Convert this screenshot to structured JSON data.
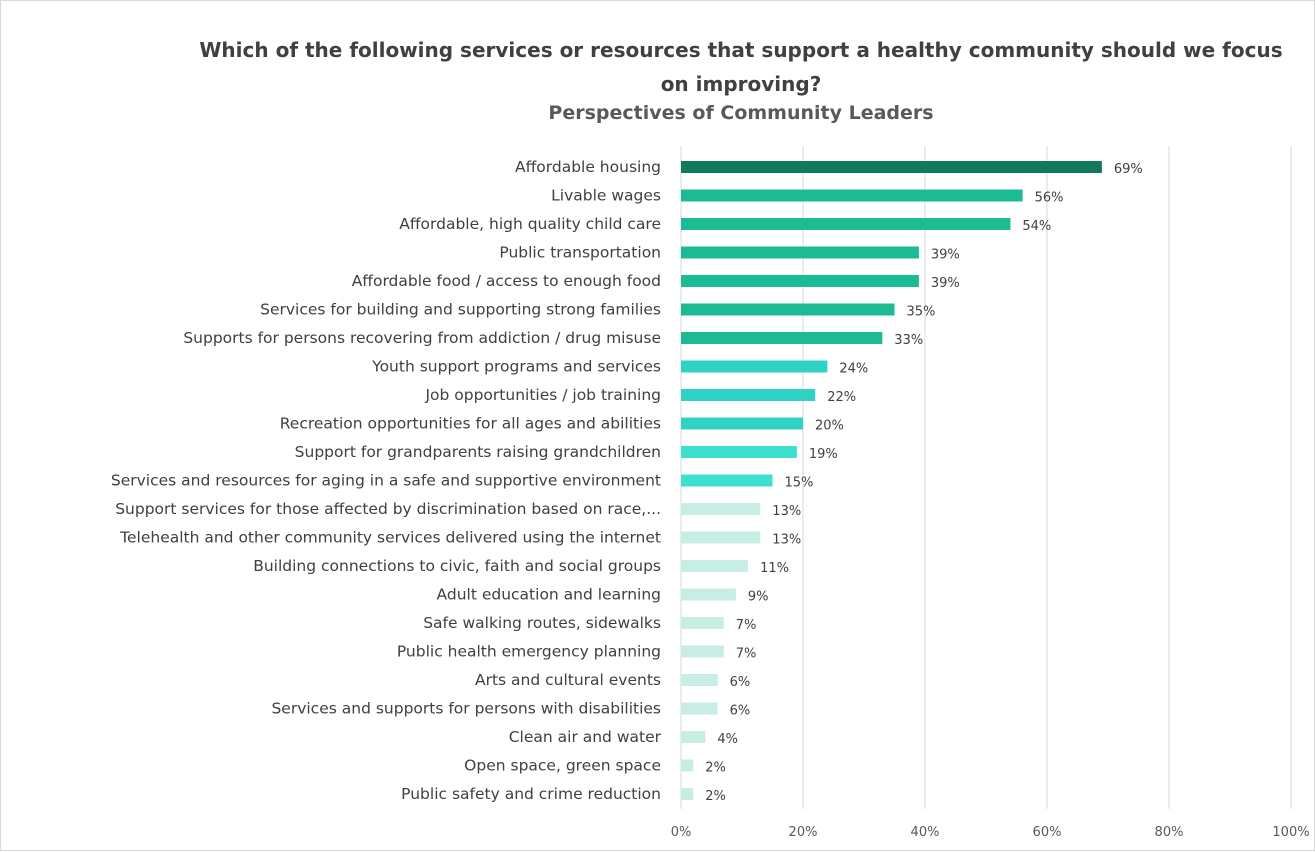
{
  "chart_data": {
    "type": "bar",
    "orientation": "horizontal",
    "title": "Which of the following services or resources that support a healthy community should we focus on improving?",
    "subtitle": "Perspectives of Community Leaders",
    "xlim": [
      0,
      100
    ],
    "ticks": [
      "0%",
      "20%",
      "40%",
      "60%",
      "80%",
      "100%"
    ],
    "grid": true,
    "legend": "none",
    "categories": [
      "Affordable housing",
      "Livable wages",
      "Affordable, high quality child care",
      "Public transportation",
      "Affordable food / access to enough food",
      "Services for building and supporting strong families",
      "Supports for persons recovering from addiction / drug misuse",
      "Youth support programs and services",
      "Job opportunities / job training",
      "Recreation opportunities for all ages and abilities",
      "Support for grandparents raising grandchildren",
      "Services and resources for aging in a safe and supportive environment",
      "Support services for those affected by discrimination based on race,...",
      "Telehealth and other community services delivered using the internet",
      "Building connections to civic, faith and social groups",
      "Adult education and learning",
      "Safe walking routes, sidewalks",
      "Public health emergency planning",
      "Arts and cultural events",
      "Services and supports for persons with disabilities",
      "Clean air and water",
      "Open space, green space",
      "Public safety and crime reduction"
    ],
    "values": [
      69,
      56,
      54,
      39,
      39,
      35,
      33,
      24,
      22,
      20,
      19,
      15,
      13,
      13,
      11,
      9,
      7,
      7,
      6,
      6,
      4,
      2,
      2
    ],
    "value_labels": [
      "69%",
      "56%",
      "54%",
      "39%",
      "39%",
      "35%",
      "33%",
      "24%",
      "22%",
      "20%",
      "19%",
      "15%",
      "13%",
      "13%",
      "11%",
      "9%",
      "7%",
      "7%",
      "6%",
      "6%",
      "4%",
      "2%",
      "2%"
    ],
    "bar_colors": [
      "#127a5c",
      "#1dbb94",
      "#1dbb94",
      "#1dbb94",
      "#1dbb94",
      "#1dbb94",
      "#1dbb94",
      "#2fd3c6",
      "#2fd3c6",
      "#2fd3c6",
      "#3fdfd0",
      "#3fdfd0",
      "#c8ede4",
      "#c8ede4",
      "#c8ede4",
      "#c8ede4",
      "#c8ede4",
      "#c8ede4",
      "#c8ede4",
      "#c8ede4",
      "#c8ede4",
      "#c8ede4",
      "#c8ede4"
    ]
  }
}
